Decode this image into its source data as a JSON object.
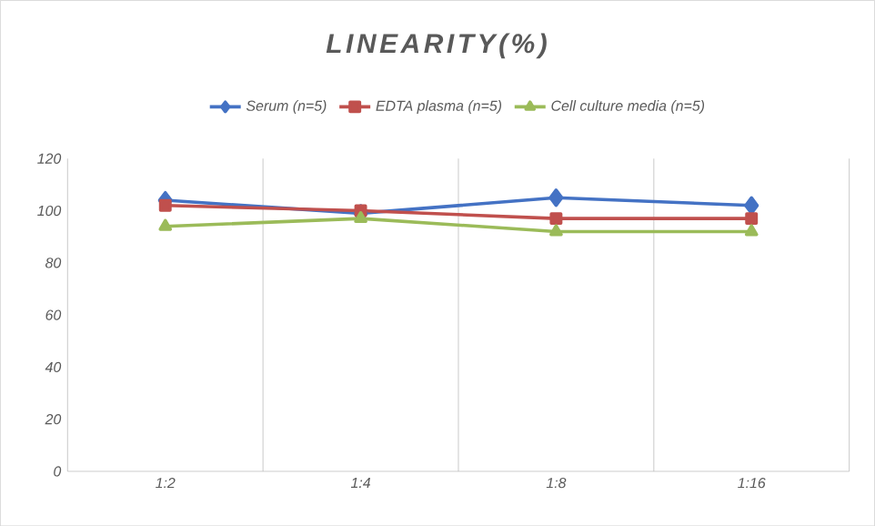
{
  "chart_data": {
    "type": "line",
    "title": "LINEARITY(%)",
    "categories": [
      "1:2",
      "1:4",
      "1:8",
      "1:16"
    ],
    "series": [
      {
        "name": "Serum (n=5)",
        "color": "#4472c4",
        "marker": "diamond",
        "values": [
          104,
          99,
          105,
          102
        ]
      },
      {
        "name": "EDTA plasma (n=5)",
        "color": "#c0504d",
        "marker": "square",
        "values": [
          102,
          100,
          97,
          97
        ]
      },
      {
        "name": "Cell culture media (n=5)",
        "color": "#9bbb59",
        "marker": "triangle",
        "values": [
          94,
          97,
          92,
          92
        ]
      }
    ],
    "ylim": [
      0,
      120
    ],
    "yticks": [
      0,
      20,
      40,
      60,
      80,
      100,
      120
    ],
    "grid": "x",
    "legend": "top"
  }
}
